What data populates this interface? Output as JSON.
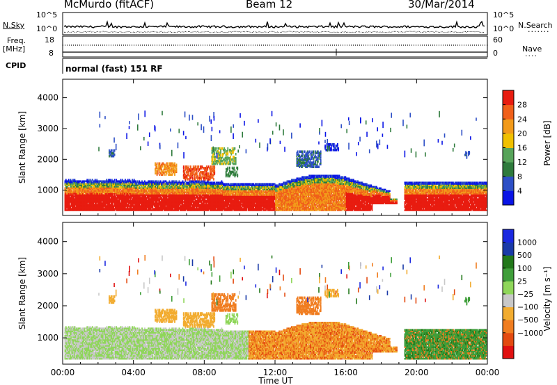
{
  "header": {
    "station": "McMurdo (fitACF)",
    "beam": "Beam 12",
    "date": "30/Mar/2014"
  },
  "summary_panel": {
    "noise_left_label": "N.Sky",
    "noise_left_ticks": [
      "10^5",
      "10^0"
    ],
    "noise_right_label": "N.Search",
    "noise_right_ticks": [
      "10^5",
      "10^0"
    ],
    "freq_label": "Freq.",
    "freq_unit": "[MHz]",
    "freq_ticks": [
      "18",
      "8"
    ],
    "nave_label": "Nave",
    "nave_ticks": [
      "60",
      "0"
    ],
    "cpid_label": "CPID",
    "cpid_value": "normal (fast) 151 RF"
  },
  "colors": {
    "power": [
      "#0a14e6",
      "#2d4fc6",
      "#2e7a3c",
      "#57a45a",
      "#f0c000",
      "#f29a1a",
      "#f0601a",
      "#e81c10"
    ],
    "velocity": [
      "#e01010",
      "#e34a10",
      "#f07d20",
      "#f2ac30",
      "#c8c8c8",
      "#8fd65a",
      "#3f9e3a",
      "#22781a",
      "#1a3aa8",
      "#1a28e0"
    ]
  },
  "chart_data": [
    {
      "type": "heatmap",
      "name": "power",
      "ylabel": "Slant Range [km]",
      "yticks": [
        1000,
        2000,
        3000,
        4000
      ],
      "ylim": [
        180,
        4600
      ],
      "xlim_hours": [
        0,
        24
      ],
      "colorbar": {
        "label": "Power [dB]",
        "ticks": [
          "4",
          "8",
          "12",
          "16",
          "20",
          "24",
          "28"
        ],
        "range": [
          0,
          30
        ]
      }
    },
    {
      "type": "heatmap",
      "name": "velocity",
      "ylabel": "Slant Range [km]",
      "yticks": [
        1000,
        2000,
        3000,
        4000
      ],
      "ylim": [
        180,
        4600
      ],
      "xlim_hours": [
        0,
        24
      ],
      "colorbar": {
        "label": "Velocity [m s⁻¹]",
        "ticks": [
          "1000",
          "500",
          "100",
          "25",
          "−25",
          "−100",
          "−500",
          "−1000"
        ]
      }
    }
  ],
  "xaxis": {
    "label": "Time UT",
    "ticks": [
      "00:00",
      "04:00",
      "08:00",
      "12:00",
      "16:00",
      "20:00",
      "00:00"
    ]
  }
}
